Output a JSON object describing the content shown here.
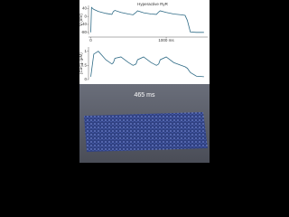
{
  "chart_data": [
    {
      "type": "line",
      "title": "Hyperactive RyR",
      "y_label": "V (mV)",
      "x": [
        0,
        10,
        40,
        100,
        200,
        280,
        300,
        320,
        400,
        500,
        560,
        600,
        620,
        700,
        800,
        870,
        900,
        920,
        1000,
        1100,
        1200,
        1250,
        1280,
        1320,
        1400,
        1500
      ],
      "series": [
        {
          "color": "#2f6b86",
          "values": [
            -80,
            45,
            35,
            25,
            15,
            10,
            25,
            30,
            20,
            12,
            8,
            20,
            28,
            18,
            12,
            10,
            22,
            28,
            20,
            12,
            8,
            5,
            -20,
            -78,
            -80,
            -80
          ]
        }
      ],
      "xlim": [
        -30,
        1550
      ],
      "xticks": [
        0,
        {
          "value": 1000,
          "label": "1000 ms"
        }
      ],
      "ylim": [
        -90,
        55
      ],
      "yticks": [
        40,
        0,
        -40,
        -80
      ]
    },
    {
      "type": "line",
      "y_label": "[Ca²⁺]ᵢ (μM)",
      "x": [
        0,
        10,
        40,
        100,
        200,
        280,
        300,
        320,
        400,
        500,
        560,
        600,
        620,
        700,
        800,
        870,
        900,
        920,
        1000,
        1100,
        1200,
        1250,
        1280,
        1320,
        1400,
        1500
      ],
      "series": [
        {
          "color": "#2f6b86",
          "values": [
            0.1,
            0.3,
            0.9,
            1.0,
            0.7,
            0.55,
            0.6,
            0.75,
            0.8,
            0.6,
            0.5,
            0.55,
            0.7,
            0.8,
            0.6,
            0.5,
            0.55,
            0.7,
            0.8,
            0.6,
            0.5,
            0.45,
            0.4,
            0.25,
            0.12,
            0.1
          ]
        }
      ],
      "xlim": [
        -30,
        1550
      ],
      "ylim": [
        0,
        1.15
      ],
      "yticks": [
        0,
        0.5,
        1
      ]
    }
  ],
  "caption": "465 ms"
}
